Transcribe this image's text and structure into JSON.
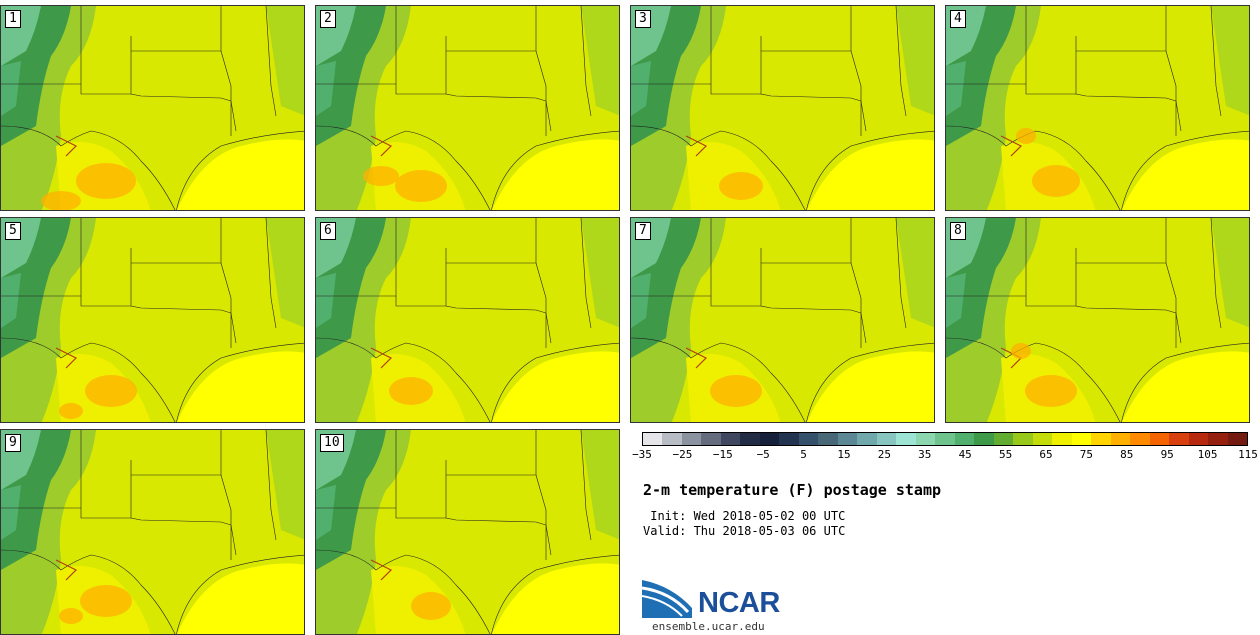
{
  "panels": [
    {
      "label": "1",
      "warm": [
        [
          105,
          180,
          30,
          18
        ],
        [
          60,
          200,
          20,
          10
        ]
      ]
    },
    {
      "label": "2",
      "warm": [
        [
          420,
          185,
          26,
          16
        ],
        [
          380,
          175,
          18,
          10
        ]
      ]
    },
    {
      "label": "3",
      "warm": [
        [
          740,
          185,
          22,
          14
        ]
      ]
    },
    {
      "label": "4",
      "warm": [
        [
          1055,
          180,
          24,
          16
        ],
        [
          1025,
          135,
          10,
          8
        ]
      ]
    },
    {
      "label": "5",
      "warm": [
        [
          110,
          390,
          26,
          16
        ],
        [
          70,
          410,
          12,
          8
        ]
      ]
    },
    {
      "label": "6",
      "warm": [
        [
          410,
          390,
          22,
          14
        ]
      ]
    },
    {
      "label": "7",
      "warm": [
        [
          735,
          390,
          26,
          16
        ]
      ]
    },
    {
      "label": "8",
      "warm": [
        [
          1050,
          390,
          26,
          16
        ],
        [
          1020,
          350,
          10,
          8
        ]
      ]
    },
    {
      "label": "9",
      "warm": [
        [
          105,
          600,
          26,
          16
        ],
        [
          70,
          615,
          12,
          8
        ]
      ]
    },
    {
      "label": "10",
      "warm": [
        [
          430,
          605,
          20,
          14
        ]
      ]
    }
  ],
  "colorbar": {
    "colors": [
      "#e6e6ea",
      "#b8bcc4",
      "#8c93a0",
      "#646c7e",
      "#3f4860",
      "#222c44",
      "#16203a",
      "#223450",
      "#35506a",
      "#486878",
      "#5c8896",
      "#70a8ac",
      "#88c4c0",
      "#9ee4d4",
      "#8cd6b0",
      "#6ec48c",
      "#52b06e",
      "#3e9a48",
      "#62ac32",
      "#98c81a",
      "#c4dc0a",
      "#eef000",
      "#ffff00",
      "#ffd400",
      "#ffb000",
      "#ff8a00",
      "#f46400",
      "#d84010",
      "#b82a10",
      "#962010",
      "#741a10"
    ],
    "ticks": [
      "−35",
      "−25",
      "−15",
      "−5",
      "5",
      "15",
      "25",
      "35",
      "45",
      "55",
      "65",
      "75",
      "85",
      "95",
      "105",
      "115"
    ]
  },
  "title": "2-m temperature (F) postage stamp",
  "init": " Init: Wed 2018-05-02 00 UTC",
  "valid": "Valid: Thu 2018-05-03 06 UTC",
  "logo_text": "NCAR",
  "url": "ensemble.ucar.edu"
}
